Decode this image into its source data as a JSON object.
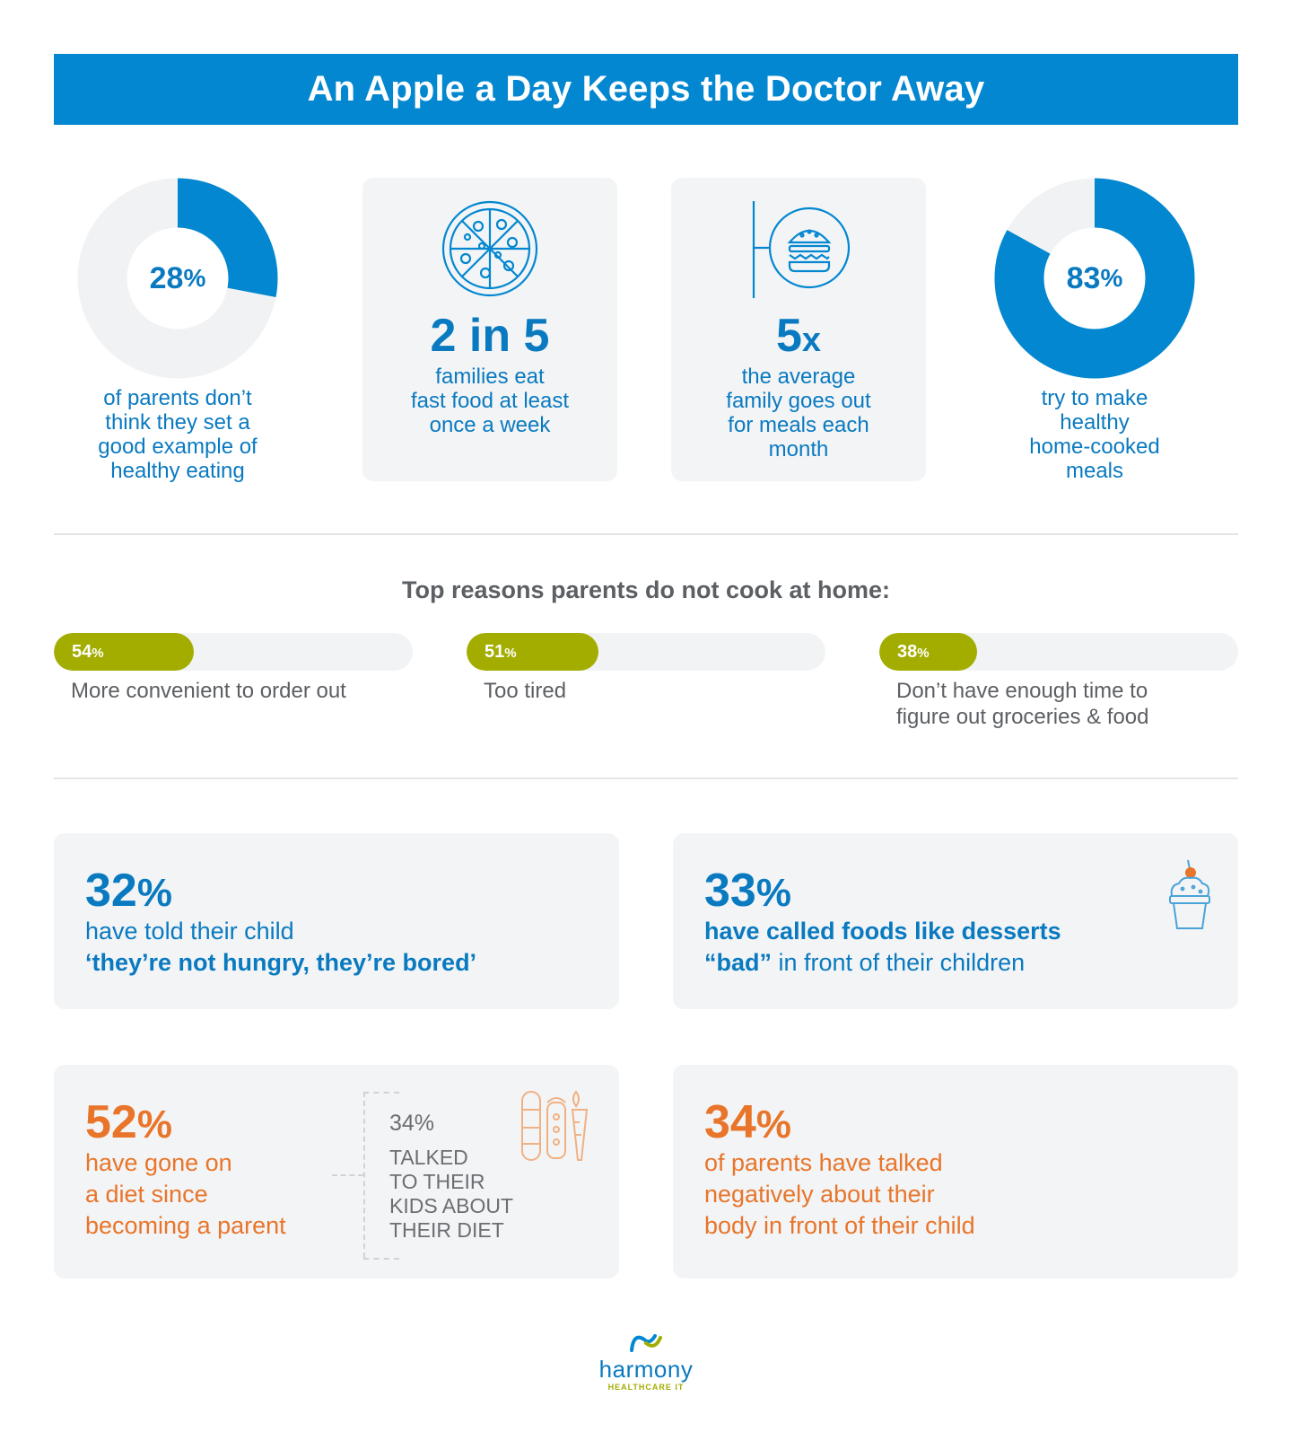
{
  "title": "An Apple a Day Keeps the Doctor Away",
  "colors": {
    "brand_blue": "#0387d0",
    "text_blue": "#0a7ac0",
    "olive": "#a3ad00",
    "orange": "#e8752a",
    "grey_text": "#5c5f63"
  },
  "top_stats": [
    {
      "kind": "donut",
      "value": "28",
      "unit": "%",
      "fraction": 0.28,
      "lines": [
        "of parents don’t",
        "think they set a",
        "good example of",
        "healthy eating"
      ]
    },
    {
      "kind": "icon",
      "icon": "pizza-icon",
      "value": "2 in 5",
      "lines": [
        "families eat",
        "fast food at least",
        "once a week"
      ]
    },
    {
      "kind": "icon",
      "icon": "burger-sign-icon",
      "value": "5",
      "unit": "x",
      "lines": [
        "the average",
        "family goes out",
        "for meals each",
        "month"
      ]
    },
    {
      "kind": "donut",
      "value": "83",
      "unit": "%",
      "fraction": 0.83,
      "lines": [
        "try to make",
        "healthy",
        "home-cooked",
        "meals"
      ]
    }
  ],
  "reasons": {
    "title": "Top reasons parents do not cook at home:",
    "items": [
      {
        "value": "54",
        "unit": "%",
        "fraction": 0.54,
        "label_lines": [
          "More convenient to order out"
        ]
      },
      {
        "value": "51",
        "unit": "%",
        "fraction": 0.51,
        "label_lines": [
          "Too tired"
        ]
      },
      {
        "value": "38",
        "unit": "%",
        "fraction": 0.38,
        "label_lines": [
          "Don’t have enough time to",
          "figure out groceries & food"
        ]
      }
    ]
  },
  "boxes": {
    "bored": {
      "value": "32",
      "unit": "%",
      "line1": "have told their child",
      "line2": "‘they’re not hungry, they’re bored’"
    },
    "desserts": {
      "value": "33",
      "unit": "%",
      "line1": "have called foods like desserts",
      "line2_quote": "“bad”",
      "line2_rest": " in front of their children",
      "icon": "cupcake-icon"
    },
    "diet": {
      "value": "52",
      "unit": "%",
      "lines": [
        "have gone on",
        "a diet since",
        "becoming a parent"
      ],
      "sub_value": "34%",
      "sub_lines": [
        "TALKED",
        "TO THEIR",
        "KIDS ABOUT",
        "THEIR DIET"
      ],
      "icon": "vegetables-icon"
    },
    "body": {
      "value": "34",
      "unit": "%",
      "lines": [
        "of parents have talked",
        "negatively about their",
        "body in front of their child"
      ]
    }
  },
  "logo": {
    "name": "harmony",
    "sub": "HEALTHCARE IT",
    "icon": "harmony-logo-icon"
  }
}
